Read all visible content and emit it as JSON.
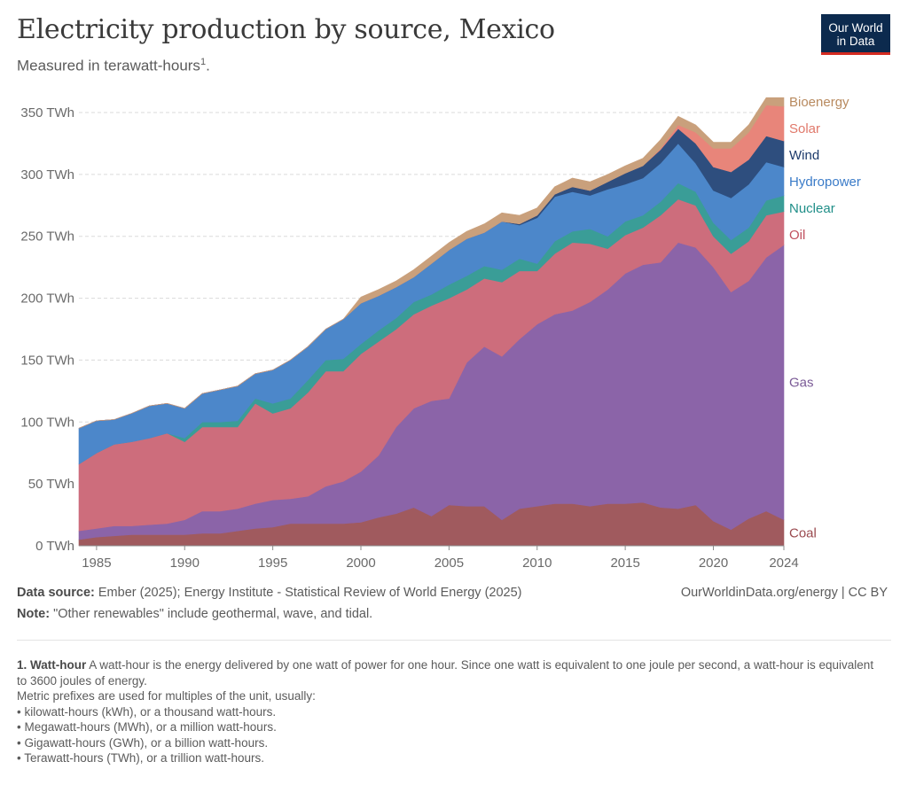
{
  "header": {
    "title": "Electricity production by source, Mexico",
    "subtitle": "Measured in terawatt-hours",
    "subtitle_sup": "1",
    "logo_line1": "Our World",
    "logo_line2": "in Data"
  },
  "footer": {
    "source_label": "Data source:",
    "source_text": "Ember (2025); Energy Institute - Statistical Review of World Energy (2025)",
    "note_label": "Note:",
    "note_text": "\"Other renewables\" include geothermal, wave, and tidal.",
    "attribution": "OurWorldinData.org/energy | CC BY"
  },
  "footnote": {
    "number": "1.",
    "term": "Watt-hour",
    "text": "A watt-hour is the energy delivered by one watt of power for one hour. Since one watt is equivalent to one joule per second, a watt-hour is equivalent to 3600 joules of energy.",
    "prefix_intro": "Metric prefixes are used for multiples of the unit, usually:",
    "items": [
      "kilowatt-hours (kWh), or a thousand watt-hours.",
      "Megawatt-hours (MWh), or a million watt-hours.",
      "Gigawatt-hours (GWh), or a billion watt-hours.",
      "Terawatt-hours (TWh), or a trillion watt-hours."
    ]
  },
  "chart_data": {
    "type": "area",
    "stacked": true,
    "title": "Electricity production by source, Mexico",
    "ylabel": "TWh",
    "ylim": [
      0,
      350
    ],
    "yticks": [
      0,
      50,
      100,
      150,
      200,
      250,
      300,
      350
    ],
    "ytick_labels": [
      "0 TWh",
      "50 TWh",
      "100 TWh",
      "150 TWh",
      "200 TWh",
      "250 TWh",
      "300 TWh",
      "350 TWh"
    ],
    "xticks": [
      1985,
      1990,
      1995,
      2000,
      2005,
      2010,
      2015,
      2020,
      2024
    ],
    "x": [
      1984,
      1985,
      1986,
      1987,
      1988,
      1989,
      1990,
      1991,
      1992,
      1993,
      1994,
      1995,
      1996,
      1997,
      1998,
      1999,
      2000,
      2001,
      2002,
      2003,
      2004,
      2005,
      2006,
      2007,
      2008,
      2009,
      2010,
      2011,
      2012,
      2013,
      2014,
      2015,
      2016,
      2017,
      2018,
      2019,
      2020,
      2021,
      2022,
      2023,
      2024
    ],
    "series": [
      {
        "name": "Coal",
        "color": "#a05a5e",
        "label_color": "#9a4a4f",
        "values": [
          5,
          7,
          8,
          9,
          9,
          9,
          9,
          10,
          10,
          12,
          14,
          15,
          18,
          18,
          18,
          18,
          19,
          23,
          26,
          31,
          24,
          33,
          32,
          32,
          21,
          30,
          32,
          34,
          34,
          32,
          34,
          34,
          35,
          31,
          30,
          33,
          20,
          13,
          22,
          28,
          21
        ]
      },
      {
        "name": "Gas",
        "color": "#8b64a8",
        "label_color": "#7a5a96",
        "values": [
          7,
          7,
          8,
          7,
          8,
          9,
          12,
          18,
          18,
          18,
          20,
          22,
          20,
          22,
          30,
          34,
          41,
          50,
          70,
          80,
          93,
          86,
          116,
          129,
          132,
          137,
          147,
          153,
          156,
          165,
          173,
          186,
          192,
          198,
          215,
          208,
          205,
          192,
          192,
          205,
          222
        ]
      },
      {
        "name": "Oil",
        "color": "#cd6d7c",
        "label_color": "#c0505e",
        "values": [
          54,
          61,
          66,
          68,
          70,
          73,
          63,
          68,
          68,
          66,
          81,
          70,
          73,
          84,
          93,
          89,
          95,
          92,
          79,
          76,
          77,
          81,
          59,
          55,
          60,
          55,
          43,
          49,
          55,
          47,
          33,
          31,
          30,
          38,
          35,
          34,
          25,
          31,
          32,
          34,
          27
        ]
      },
      {
        "name": "Nuclear",
        "color": "#3a9d97",
        "label_color": "#1f8e88",
        "values": [
          0,
          0,
          0,
          0,
          0,
          0,
          3,
          4,
          4,
          5,
          4,
          8,
          8,
          10,
          9,
          10,
          8,
          9,
          9,
          10,
          9,
          11,
          11,
          10,
          10,
          10,
          6,
          10,
          9,
          12,
          10,
          11,
          10,
          11,
          13,
          11,
          11,
          11,
          11,
          12,
          13
        ]
      },
      {
        "name": "Hydropower",
        "color": "#4c87ca",
        "label_color": "#3a7bc8",
        "values": [
          29,
          26,
          20,
          23,
          26,
          24,
          24,
          23,
          26,
          28,
          20,
          27,
          31,
          27,
          25,
          32,
          33,
          28,
          25,
          20,
          25,
          28,
          30,
          27,
          39,
          27,
          37,
          36,
          32,
          27,
          38,
          30,
          30,
          31,
          32,
          23,
          26,
          34,
          35,
          31,
          23
        ]
      },
      {
        "name": "Wind",
        "color": "#2e4e7e",
        "label_color": "#1d3a6b",
        "values": [
          0,
          0,
          0,
          0,
          0,
          0,
          0,
          0,
          0,
          0,
          0,
          0,
          0,
          0,
          0,
          0,
          0,
          0,
          0,
          0,
          0,
          0,
          0,
          0,
          0,
          1,
          2,
          2,
          4,
          4,
          6,
          9,
          10,
          11,
          12,
          16,
          19,
          21,
          20,
          21,
          21
        ]
      },
      {
        "name": "Solar",
        "color": "#e8857a",
        "label_color": "#e0796b",
        "values": [
          0,
          0,
          0,
          0,
          0,
          0,
          0,
          0,
          0,
          0,
          0,
          0,
          0,
          0,
          0,
          0,
          0,
          0,
          0,
          0,
          0,
          0,
          0,
          0,
          0,
          0,
          0,
          0,
          0,
          0,
          0,
          0,
          0,
          1,
          3,
          9,
          15,
          19,
          22,
          25,
          28
        ]
      },
      {
        "name": "Bioenergy",
        "color": "#c9a07c",
        "label_color": "#b88a5f",
        "values": [
          0,
          0,
          0,
          0,
          0,
          0,
          0,
          0,
          0,
          0,
          0,
          0,
          0,
          0,
          0,
          0,
          5,
          5,
          5,
          6,
          6,
          6,
          6,
          7,
          7,
          7,
          6,
          6,
          7,
          7,
          6,
          6,
          6,
          7,
          7,
          6,
          5,
          5,
          6,
          6,
          7
        ]
      }
    ]
  }
}
